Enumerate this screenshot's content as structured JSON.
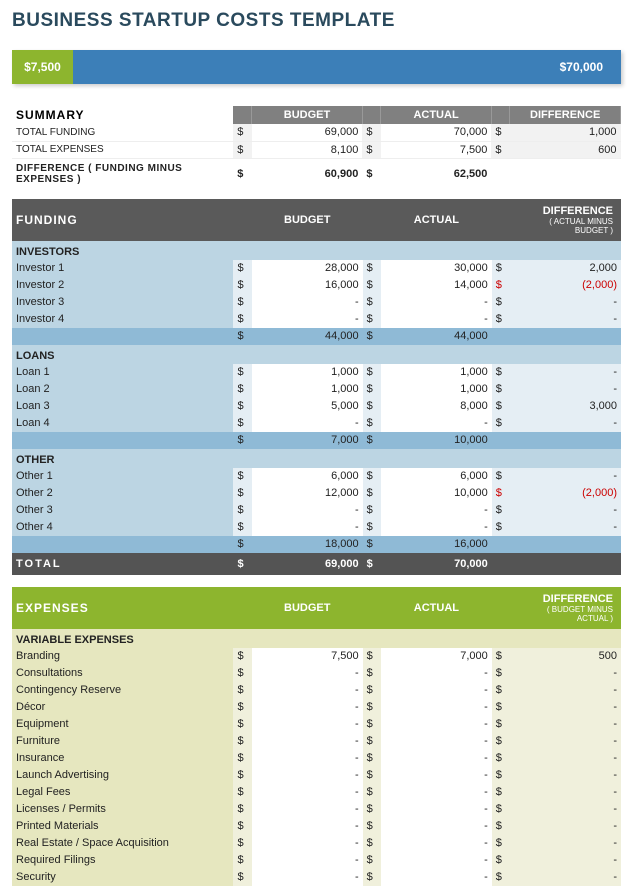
{
  "title": "BUSINESS STARTUP COSTS TEMPLATE",
  "bar": {
    "left_label": "$7,500",
    "right_label": "$70,000",
    "left_pct": 10
  },
  "summary": {
    "label": "SUMMARY",
    "cols": {
      "budget": "BUDGET",
      "actual": "ACTUAL",
      "difference": "DIFFERENCE"
    },
    "rows": [
      {
        "label": "TOTAL FUNDING",
        "budget": "69,000",
        "actual": "70,000",
        "diff": "1,000"
      },
      {
        "label": "TOTAL EXPENSES",
        "budget": "8,100",
        "actual": "7,500",
        "diff": "600"
      }
    ],
    "diff_label": "DIFFERENCE  ( FUNDING MINUS EXPENSES )",
    "diff_budget": "60,900",
    "diff_actual": "62,500"
  },
  "funding": {
    "header": "FUNDING",
    "cols": {
      "budget": "BUDGET",
      "actual": "ACTUAL",
      "difference": "DIFFERENCE",
      "diff_sub": "( ACTUAL MINUS BUDGET )"
    },
    "groups": [
      {
        "name": "INVESTORS",
        "rows": [
          {
            "label": "Investor 1",
            "budget": "28,000",
            "actual": "30,000",
            "diff": "2,000"
          },
          {
            "label": "Investor 2",
            "budget": "16,000",
            "actual": "14,000",
            "diff": "(2,000)",
            "neg": true
          },
          {
            "label": "Investor 3",
            "budget": "-",
            "actual": "-",
            "diff": "-"
          },
          {
            "label": "Investor 4",
            "budget": "-",
            "actual": "-",
            "diff": "-"
          }
        ],
        "sub_budget": "44,000",
        "sub_actual": "44,000"
      },
      {
        "name": "LOANS",
        "rows": [
          {
            "label": "Loan 1",
            "budget": "1,000",
            "actual": "1,000",
            "diff": "-"
          },
          {
            "label": "Loan 2",
            "budget": "1,000",
            "actual": "1,000",
            "diff": "-"
          },
          {
            "label": "Loan 3",
            "budget": "5,000",
            "actual": "8,000",
            "diff": "3,000"
          },
          {
            "label": "Loan 4",
            "budget": "-",
            "actual": "-",
            "diff": "-"
          }
        ],
        "sub_budget": "7,000",
        "sub_actual": "10,000"
      },
      {
        "name": "OTHER",
        "rows": [
          {
            "label": "Other 1",
            "budget": "6,000",
            "actual": "6,000",
            "diff": "-"
          },
          {
            "label": "Other 2",
            "budget": "12,000",
            "actual": "10,000",
            "diff": "(2,000)",
            "neg": true
          },
          {
            "label": "Other 3",
            "budget": "-",
            "actual": "-",
            "diff": "-"
          },
          {
            "label": "Other 4",
            "budget": "-",
            "actual": "-",
            "diff": "-"
          }
        ],
        "sub_budget": "18,000",
        "sub_actual": "16,000"
      }
    ],
    "total": {
      "label": "TOTAL",
      "budget": "69,000",
      "actual": "70,000"
    }
  },
  "expenses": {
    "header": "EXPENSES",
    "cols": {
      "budget": "BUDGET",
      "actual": "ACTUAL",
      "difference": "DIFFERENCE",
      "diff_sub": "( BUDGET MINUS ACTUAL )"
    },
    "group_name": "VARIABLE EXPENSES",
    "rows": [
      {
        "label": "Branding",
        "budget": "7,500",
        "actual": "7,000",
        "diff": "500"
      },
      {
        "label": "Consultations",
        "budget": "-",
        "actual": "-",
        "diff": "-"
      },
      {
        "label": "Contingency Reserve",
        "budget": "-",
        "actual": "-",
        "diff": "-"
      },
      {
        "label": "Décor",
        "budget": "-",
        "actual": "-",
        "diff": "-"
      },
      {
        "label": "Equipment",
        "budget": "-",
        "actual": "-",
        "diff": "-"
      },
      {
        "label": "Furniture",
        "budget": "-",
        "actual": "-",
        "diff": "-"
      },
      {
        "label": "Insurance",
        "budget": "-",
        "actual": "-",
        "diff": "-"
      },
      {
        "label": "Launch Advertising",
        "budget": "-",
        "actual": "-",
        "diff": "-"
      },
      {
        "label": "Legal Fees",
        "budget": "-",
        "actual": "-",
        "diff": "-"
      },
      {
        "label": "Licenses / Permits",
        "budget": "-",
        "actual": "-",
        "diff": "-"
      },
      {
        "label": "Printed Materials",
        "budget": "-",
        "actual": "-",
        "diff": "-"
      },
      {
        "label": "Real Estate / Space Acquisition",
        "budget": "-",
        "actual": "-",
        "diff": "-"
      },
      {
        "label": "Required Filings",
        "budget": "-",
        "actual": "-",
        "diff": "-"
      },
      {
        "label": "Security",
        "budget": "-",
        "actual": "-",
        "diff": "-"
      }
    ]
  },
  "colors": {
    "green": "#8db52e",
    "blue": "#3c7fb8",
    "dark_header": "#5a5a5a",
    "funding_body": "#bcd5e3",
    "subtotal": "#8fbad6",
    "expenses_body": "#e6e7bf",
    "neg": "#c00"
  }
}
